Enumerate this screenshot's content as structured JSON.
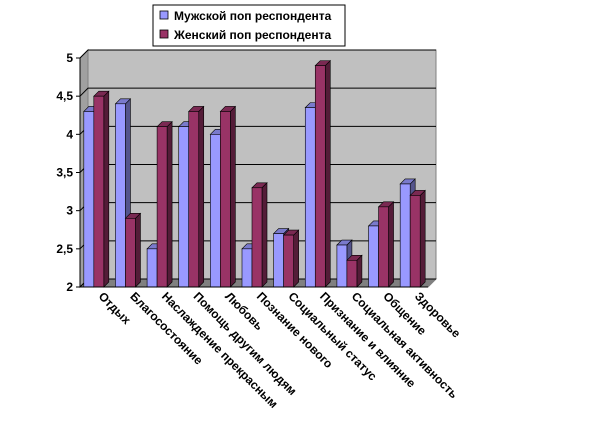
{
  "chart_data": {
    "type": "bar",
    "title": "",
    "xlabel": "",
    "ylabel": "",
    "ylim": [
      2,
      5
    ],
    "yticks": [
      "2",
      "2,5",
      "3",
      "3,5",
      "4",
      "4,5",
      "5"
    ],
    "ytick_values": [
      2,
      2.5,
      3,
      3.5,
      4,
      4.5,
      5
    ],
    "grid": true,
    "legend_position": "top",
    "categories": [
      "Отдых",
      "Благосостояние",
      "Наслаждение прекрасным",
      "Помощь другим людям",
      "Любовь",
      "Познание нового",
      "Социальный статус",
      "Признание и влияние",
      "Социальная активность",
      "Общение",
      "Здоровье"
    ],
    "series": [
      {
        "name": "Мужской поп респондента",
        "color": "#9999ff",
        "values": [
          4.3,
          4.4,
          2.5,
          4.1,
          4.0,
          2.5,
          2.7,
          4.35,
          2.55,
          2.8,
          3.35
        ]
      },
      {
        "name": "Женский поп респондента",
        "color": "#993366",
        "values": [
          4.5,
          2.9,
          4.1,
          4.3,
          4.3,
          3.3,
          2.68,
          4.9,
          2.35,
          3.05,
          3.2
        ]
      }
    ]
  }
}
